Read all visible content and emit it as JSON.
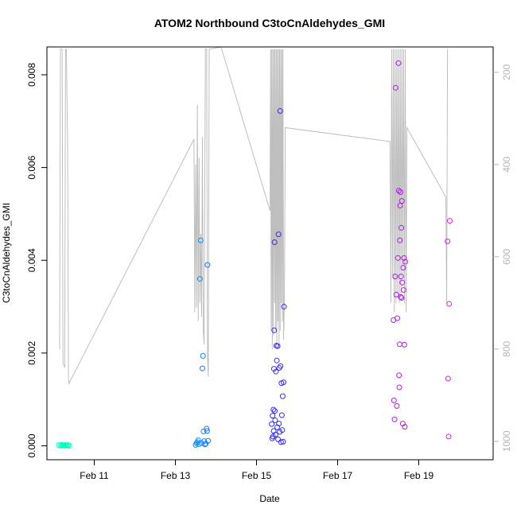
{
  "chart_data": {
    "type": "scatter",
    "title": "ATOM2 Northbound C3toCnAldehydes_GMI",
    "xlabel": "Date",
    "ylabel": "C3toCnAldehydes_GMI",
    "x_ticks": [
      "Feb 11",
      "Feb 13",
      "Feb 15",
      "Feb 17",
      "Feb 19"
    ],
    "y_ticks": [
      "0.000",
      "0.002",
      "0.004",
      "0.006",
      "0.008"
    ],
    "y2_ticks": [
      "200",
      "400",
      "600",
      "800",
      "1000"
    ],
    "xlim": [
      "2017-02-09 20:00",
      "2017-02-20 20:00"
    ],
    "ylim": [
      -0.0003,
      0.0086
    ],
    "y2lim": [
      1040,
      145
    ],
    "y2_reversed": true,
    "grid": false,
    "legend": "none",
    "colors": {
      "pressure_line": "#bebebe",
      "right_axis": "#b4b4b4",
      "point_gradient_start": "#00ffb3",
      "point_gradient_mid1": "#00c8ff",
      "point_gradient_mid2": "#1a33ff",
      "point_gradient_mid3": "#8a1ae6",
      "point_gradient_end": "#d71ee6"
    },
    "series": [
      {
        "role": "concentration",
        "axis": "left",
        "points": [
          [
            "2017-02-10 03:00",
            1.6e-05
          ],
          [
            "2017-02-10 04:00",
            6e-06
          ],
          [
            "2017-02-10 04:45",
            2.2e-05
          ],
          [
            "2017-02-10 05:30",
            1e-05
          ],
          [
            "2017-02-10 06:15",
            3e-06
          ],
          [
            "2017-02-10 07:00",
            1.8e-05
          ],
          [
            "2017-02-10 07:45",
            8e-06
          ],
          [
            "2017-02-10 08:30",
            1.5e-05
          ],
          [
            "2017-02-10 09:15",
            1e-06
          ],
          [
            "2017-02-13 12:00",
            2e-05
          ],
          [
            "2017-02-13 12:30",
            5.5e-05
          ],
          [
            "2017-02-13 13:00",
            8e-05
          ],
          [
            "2017-02-13 13:30",
            0.00012
          ],
          [
            "2017-02-13 14:00",
            3.5e-05
          ],
          [
            "2017-02-13 14:30",
            0.0036
          ],
          [
            "2017-02-13 15:00",
            0.00443
          ],
          [
            "2017-02-13 15:15",
            6e-05
          ],
          [
            "2017-02-13 16:00",
            0.00167
          ],
          [
            "2017-02-13 16:20",
            0.00194
          ],
          [
            "2017-02-13 16:40",
            0.00031
          ],
          [
            "2017-02-13 17:00",
            0.0001
          ],
          [
            "2017-02-13 17:30",
            3e-05
          ],
          [
            "2017-02-13 18:00",
            4.5e-05
          ],
          [
            "2017-02-13 18:30",
            0.00037
          ],
          [
            "2017-02-13 18:45",
            0.00032
          ],
          [
            "2017-02-13 19:00",
            0.0039
          ],
          [
            "2017-02-13 19:20",
            0.00011
          ],
          [
            "2017-02-15 09:00",
            0.00047
          ],
          [
            "2017-02-15 09:15",
            0.00016
          ],
          [
            "2017-02-15 09:30",
            0.00065
          ],
          [
            "2017-02-15 09:45",
            0.0002
          ],
          [
            "2017-02-15 10:00",
            0.00078
          ],
          [
            "2017-02-15 10:10",
            0.00032
          ],
          [
            "2017-02-15 10:20",
            0.00166
          ],
          [
            "2017-02-15 10:30",
            0.00249
          ],
          [
            "2017-02-15 10:40",
            0.00439
          ],
          [
            "2017-02-15 10:50",
            0.00075
          ],
          [
            "2017-02-15 11:00",
            0.00055
          ],
          [
            "2017-02-15 11:15",
            0.00024
          ],
          [
            "2017-02-15 11:30",
            0.0016
          ],
          [
            "2017-02-15 11:45",
            0.00216
          ],
          [
            "2017-02-15 12:00",
            0.00184
          ],
          [
            "2017-02-15 12:15",
            0.0004
          ],
          [
            "2017-02-15 12:30",
            0.00215
          ],
          [
            "2017-02-15 12:45",
            0.00014
          ],
          [
            "2017-02-15 13:00",
            0.00456
          ],
          [
            "2017-02-15 13:15",
            0.00048
          ],
          [
            "2017-02-15 13:30",
            0.00168
          ],
          [
            "2017-02-15 13:45",
            0.0003
          ],
          [
            "2017-02-15 14:00",
            0.00722
          ],
          [
            "2017-02-15 14:15",
            0.00172
          ],
          [
            "2017-02-15 14:30",
            8e-05
          ],
          [
            "2017-02-15 14:45",
            0.00135
          ],
          [
            "2017-02-15 15:00",
            0.00066
          ],
          [
            "2017-02-15 15:15",
            0.00034
          ],
          [
            "2017-02-15 15:30",
            0.00107
          ],
          [
            "2017-02-15 15:45",
            9e-05
          ],
          [
            "2017-02-15 16:00",
            0.00137
          ],
          [
            "2017-02-15 16:15",
            0.003
          ],
          [
            "2017-02-18 09:00",
            0.00271
          ],
          [
            "2017-02-18 09:20",
            0.00098
          ],
          [
            "2017-02-18 09:40",
            0.00057
          ],
          [
            "2017-02-18 10:00",
            0.00365
          ],
          [
            "2017-02-18 10:20",
            0.00772
          ],
          [
            "2017-02-18 10:40",
            0.00326
          ],
          [
            "2017-02-18 11:00",
            0.00086
          ],
          [
            "2017-02-18 11:20",
            0.00275
          ],
          [
            "2017-02-18 11:40",
            0.00405
          ],
          [
            "2017-02-18 12:00",
            0.00825
          ],
          [
            "2017-02-18 12:10",
            0.0055
          ],
          [
            "2017-02-18 12:20",
            0.00152
          ],
          [
            "2017-02-18 12:30",
            0.00126
          ],
          [
            "2017-02-18 12:40",
            0.00219
          ],
          [
            "2017-02-18 12:50",
            0.00443
          ],
          [
            "2017-02-18 13:00",
            0.00518
          ],
          [
            "2017-02-18 13:10",
            0.00547
          ],
          [
            "2017-02-18 13:20",
            0.00321
          ],
          [
            "2017-02-18 13:30",
            0.00365
          ],
          [
            "2017-02-18 13:40",
            0.0047
          ],
          [
            "2017-02-18 13:50",
            0.00319
          ],
          [
            "2017-02-18 14:00",
            0.00528
          ],
          [
            "2017-02-18 14:15",
            0.00352
          ],
          [
            "2017-02-18 14:30",
            0.00048
          ],
          [
            "2017-02-18 14:45",
            0.00384
          ],
          [
            "2017-02-18 15:00",
            0.00336
          ],
          [
            "2017-02-18 15:15",
            0.00405
          ],
          [
            "2017-02-18 15:30",
            0.00218
          ],
          [
            "2017-02-18 15:45",
            0.00041
          ],
          [
            "2017-02-18 16:00",
            0.00397
          ],
          [
            "2017-02-19 17:00",
            0.00441
          ],
          [
            "2017-02-19 17:20",
            0.00145
          ],
          [
            "2017-02-19 17:40",
            0.0002
          ],
          [
            "2017-02-19 18:00",
            0.00306
          ],
          [
            "2017-02-19 18:20",
            0.00485
          ]
        ]
      },
      {
        "role": "pressure",
        "axis": "right",
        "points": [
          [
            "2017-02-10 03:30",
            800
          ],
          [
            "2017-02-10 04:00",
            150
          ],
          [
            "2017-02-10 05:00",
            150
          ],
          [
            "2017-02-10 05:30",
            830
          ],
          [
            "2017-02-10 06:30",
            840
          ],
          [
            "2017-02-10 07:00",
            150
          ],
          [
            "2017-02-10 07:30",
            150
          ],
          [
            "2017-02-10 08:15",
            360
          ],
          [
            "2017-02-10 08:45",
            860
          ],
          [
            "2017-02-10 09:00",
            875
          ],
          [
            "2017-02-13 11:00",
            345
          ],
          [
            "2017-02-13 11:30",
            720
          ],
          [
            "2017-02-13 12:00",
            400
          ],
          [
            "2017-02-13 12:30",
            710
          ],
          [
            "2017-02-13 13:00",
            270
          ],
          [
            "2017-02-13 13:30",
            740
          ],
          [
            "2017-02-13 14:00",
            385
          ],
          [
            "2017-02-13 14:30",
            700
          ],
          [
            "2017-02-13 15:00",
            550
          ],
          [
            "2017-02-13 15:30",
            730
          ],
          [
            "2017-02-13 16:00",
            340
          ],
          [
            "2017-02-13 16:30",
            760
          ],
          [
            "2017-02-13 17:00",
            790
          ],
          [
            "2017-02-13 17:45",
            150
          ],
          [
            "2017-02-13 18:30",
            150
          ],
          [
            "2017-02-13 19:00",
            815
          ],
          [
            "2017-02-13 19:30",
            860
          ],
          [
            "2017-02-13 20:00",
            150
          ],
          [
            "2017-02-13 20:30",
            150
          ],
          [
            "2017-02-14 03:00",
            145
          ],
          [
            "2017-02-15 08:00",
            500
          ],
          [
            "2017-02-15 08:20",
            150
          ],
          [
            "2017-02-15 08:40",
            760
          ],
          [
            "2017-02-15 09:00",
            150
          ],
          [
            "2017-02-15 09:20",
            800
          ],
          [
            "2017-02-15 09:40",
            150
          ],
          [
            "2017-02-15 10:00",
            770
          ],
          [
            "2017-02-15 10:20",
            150
          ],
          [
            "2017-02-15 10:40",
            700
          ],
          [
            "2017-02-15 11:00",
            150
          ],
          [
            "2017-02-15 11:20",
            760
          ],
          [
            "2017-02-15 11:40",
            150
          ],
          [
            "2017-02-15 12:00",
            800
          ],
          [
            "2017-02-15 12:20",
            150
          ],
          [
            "2017-02-15 12:40",
            740
          ],
          [
            "2017-02-15 13:00",
            150
          ],
          [
            "2017-02-15 13:20",
            790
          ],
          [
            "2017-02-15 13:40",
            150
          ],
          [
            "2017-02-15 14:00",
            760
          ],
          [
            "2017-02-15 14:20",
            150
          ],
          [
            "2017-02-15 14:40",
            700
          ],
          [
            "2017-02-15 15:00",
            150
          ],
          [
            "2017-02-15 15:20",
            740
          ],
          [
            "2017-02-15 15:40",
            150
          ],
          [
            "2017-02-15 16:00",
            780
          ],
          [
            "2017-02-15 16:30",
            700
          ],
          [
            "2017-02-15 17:00",
            320
          ],
          [
            "2017-02-18 07:00",
            350
          ],
          [
            "2017-02-18 07:30",
            700
          ],
          [
            "2017-02-18 08:00",
            150
          ],
          [
            "2017-02-18 08:30",
            640
          ],
          [
            "2017-02-18 09:00",
            150
          ],
          [
            "2017-02-18 09:30",
            720
          ],
          [
            "2017-02-18 10:00",
            150
          ],
          [
            "2017-02-18 10:30",
            700
          ],
          [
            "2017-02-18 11:00",
            150
          ],
          [
            "2017-02-18 11:30",
            680
          ],
          [
            "2017-02-18 12:00",
            150
          ],
          [
            "2017-02-18 12:30",
            700
          ],
          [
            "2017-02-18 13:00",
            150
          ],
          [
            "2017-02-18 13:30",
            680
          ],
          [
            "2017-02-18 14:00",
            150
          ],
          [
            "2017-02-18 14:30",
            640
          ],
          [
            "2017-02-18 15:00",
            150
          ],
          [
            "2017-02-18 15:30",
            700
          ],
          [
            "2017-02-18 16:00",
            150
          ],
          [
            "2017-02-18 16:30",
            720
          ],
          [
            "2017-02-18 17:00",
            320
          ],
          [
            "2017-02-19 16:00",
            470
          ],
          [
            "2017-02-19 16:30",
            700
          ],
          [
            "2017-02-19 17:00",
            150
          ]
        ]
      }
    ]
  }
}
